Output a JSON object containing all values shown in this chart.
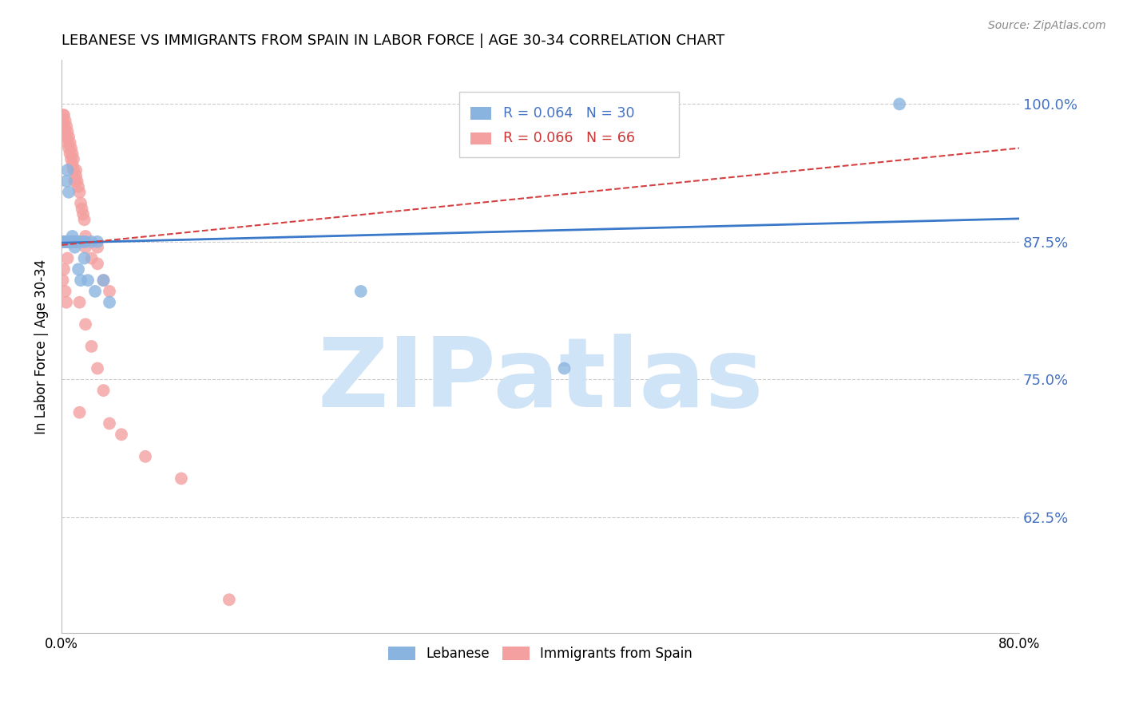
{
  "title": "LEBANESE VS IMMIGRANTS FROM SPAIN IN LABOR FORCE | AGE 30-34 CORRELATION CHART",
  "source": "Source: ZipAtlas.com",
  "ylabel": "In Labor Force | Age 30-34",
  "xlim": [
    0.0,
    0.8
  ],
  "ylim": [
    0.52,
    1.04
  ],
  "yticks": [
    0.625,
    0.75,
    0.875,
    1.0
  ],
  "ytick_labels": [
    "62.5%",
    "75.0%",
    "87.5%",
    "100.0%"
  ],
  "xticks": [
    0.0,
    0.1,
    0.2,
    0.3,
    0.4,
    0.5,
    0.6,
    0.7,
    0.8
  ],
  "xtick_labels_show": [
    "0.0%",
    "",
    "",
    "",
    "",
    "",
    "",
    "",
    "80.0%"
  ],
  "blue_R": 0.064,
  "blue_N": 30,
  "pink_R": 0.066,
  "pink_N": 66,
  "blue_color": "#8ab4e0",
  "pink_color": "#f4a0a0",
  "trend_blue_color": "#3a78c9",
  "trend_pink_color": "#d44040",
  "watermark": "ZIPatlas",
  "watermark_color": "#d0e4f7",
  "legend_blue_label": "Lebanese",
  "legend_pink_label": "Immigrants from Spain",
  "blue_x": [
    0.001,
    0.002,
    0.003,
    0.004,
    0.005,
    0.006,
    0.007,
    0.008,
    0.01,
    0.012,
    0.015,
    0.018,
    0.02,
    0.025,
    0.03,
    0.004,
    0.005,
    0.006,
    0.009,
    0.011,
    0.016,
    0.014,
    0.019,
    0.022,
    0.028,
    0.035,
    0.04,
    0.25,
    0.42,
    0.7
  ],
  "blue_y": [
    0.875,
    0.875,
    0.875,
    0.875,
    0.875,
    0.875,
    0.875,
    0.875,
    0.875,
    0.875,
    0.875,
    0.875,
    0.875,
    0.875,
    0.875,
    0.93,
    0.94,
    0.92,
    0.88,
    0.87,
    0.84,
    0.85,
    0.86,
    0.84,
    0.83,
    0.84,
    0.82,
    0.83,
    0.76,
    1.0
  ],
  "pink_x": [
    0.001,
    0.001,
    0.002,
    0.002,
    0.003,
    0.003,
    0.004,
    0.004,
    0.005,
    0.005,
    0.006,
    0.006,
    0.007,
    0.007,
    0.008,
    0.008,
    0.009,
    0.009,
    0.01,
    0.01,
    0.011,
    0.012,
    0.012,
    0.013,
    0.014,
    0.015,
    0.016,
    0.017,
    0.018,
    0.019,
    0.001,
    0.002,
    0.003,
    0.004,
    0.005,
    0.006,
    0.007,
    0.008,
    0.009,
    0.01,
    0.011,
    0.012,
    0.013,
    0.02,
    0.02,
    0.025,
    0.03,
    0.03,
    0.035,
    0.04,
    0.001,
    0.002,
    0.003,
    0.004,
    0.005,
    0.015,
    0.02,
    0.025,
    0.03,
    0.035,
    0.015,
    0.04,
    0.05,
    0.07,
    0.1,
    0.14
  ],
  "pink_y": [
    0.99,
    0.985,
    0.99,
    0.98,
    0.985,
    0.975,
    0.98,
    0.97,
    0.975,
    0.965,
    0.97,
    0.96,
    0.965,
    0.955,
    0.96,
    0.95,
    0.955,
    0.945,
    0.95,
    0.94,
    0.93,
    0.94,
    0.935,
    0.93,
    0.925,
    0.92,
    0.91,
    0.905,
    0.9,
    0.895,
    0.875,
    0.875,
    0.875,
    0.875,
    0.875,
    0.875,
    0.875,
    0.875,
    0.875,
    0.875,
    0.875,
    0.875,
    0.875,
    0.87,
    0.88,
    0.86,
    0.855,
    0.87,
    0.84,
    0.83,
    0.84,
    0.85,
    0.83,
    0.82,
    0.86,
    0.82,
    0.8,
    0.78,
    0.76,
    0.74,
    0.72,
    0.71,
    0.7,
    0.68,
    0.66,
    0.55
  ]
}
